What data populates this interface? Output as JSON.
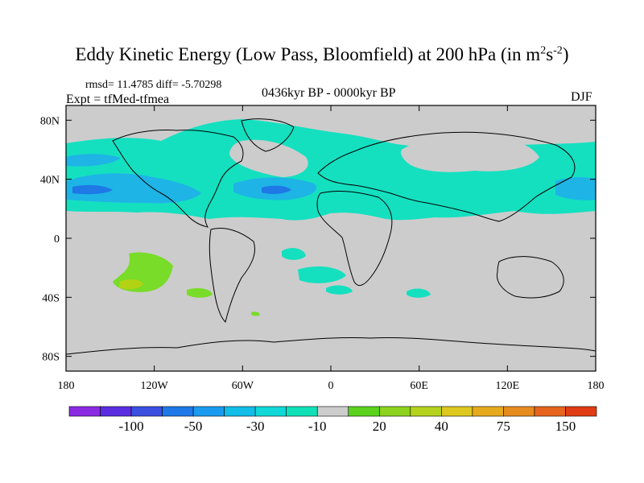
{
  "title": {
    "main": "Eddy Kinetic Energy (Low Pass, Bloomfield) at 200 hPa (in m",
    "sup1": "2",
    "mid": "s",
    "sup2": "-2",
    "end": ")"
  },
  "stats": "rmsd= 11.4785 diff= -5.70298",
  "experiment": "Expt = tfMed-tfmea",
  "period": "0436kyr BP - 0000kyr BP",
  "season": "DJF",
  "axes": {
    "x_ticks": [
      "180",
      "120W",
      "60W",
      "0",
      "60E",
      "120E",
      "180"
    ],
    "y_ticks": [
      "80N",
      "40N",
      "0",
      "40S",
      "80S"
    ]
  },
  "colorbar": {
    "colors": [
      "#8a2be2",
      "#5a2ee0",
      "#3b4fe0",
      "#1e78e8",
      "#1a9bf0",
      "#12bde8",
      "#10d8d8",
      "#10e0b8",
      "#cccccc",
      "#5ad21e",
      "#8cd21e",
      "#b4d21e",
      "#dcc81e",
      "#e6aa1e",
      "#e68c1e",
      "#e6641e",
      "#e03c14"
    ],
    "labels": [
      "-100",
      "-50",
      "-30",
      "-10",
      "20",
      "40",
      "75",
      "150"
    ]
  },
  "legend_colors": {
    "ocean_land_background": "#cccccc",
    "cyan": "#14e0c0",
    "light_blue": "#1eb4e6",
    "blue": "#1e78e6",
    "green": "#78dc28",
    "yellow_green": "#b4d214"
  }
}
